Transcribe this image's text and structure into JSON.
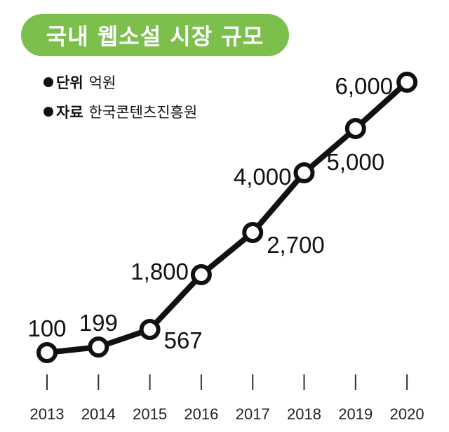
{
  "header": {
    "title": "국내 웹소설 시장 규모",
    "unit_key": "단위",
    "unit_value": "억원",
    "source_key": "자료",
    "source_value": "한국콘텐츠진흥원"
  },
  "colors": {
    "accent": "#7cbf4d",
    "line": "#111111",
    "marker_fill": "#ffffff"
  },
  "chart_data": {
    "type": "line",
    "title": "국내 웹소설 시장 규모",
    "xlabel": "",
    "ylabel": "",
    "categories": [
      "2013",
      "2014",
      "2015",
      "2016",
      "2017",
      "2018",
      "2019",
      "2020"
    ],
    "values": [
      100,
      199,
      567,
      1800,
      2700,
      4000,
      5000,
      6000
    ],
    "data_labels": [
      "100",
      "199",
      "567",
      "1,800",
      "2,700",
      "4,000",
      "5,000",
      "6,000"
    ],
    "ylim": [
      0,
      6000
    ],
    "grid": false,
    "legend": "none"
  }
}
